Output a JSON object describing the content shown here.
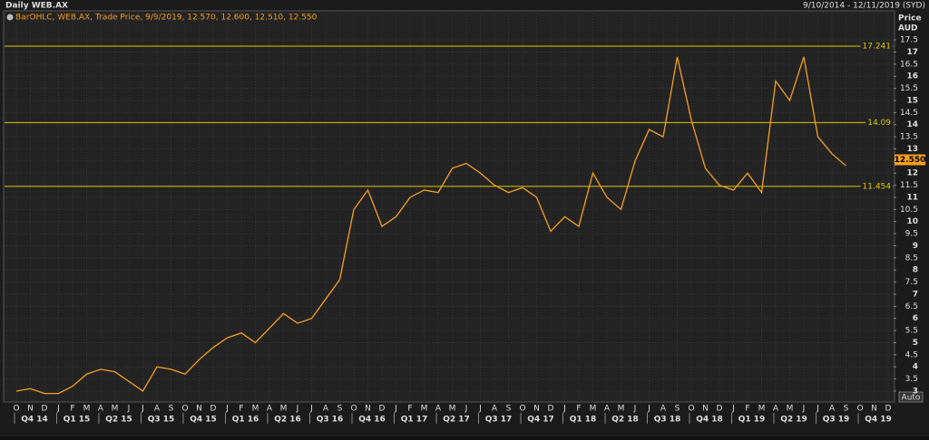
{
  "header": {
    "title": "Daily WEB.AX",
    "range": "9/10/2014 - 12/11/2019 (SYD)",
    "auto_button": "Auto"
  },
  "chart_data": {
    "type": "line",
    "legend_text": "BarOHLC, WEB.AX, Trade Price, 9/9/2019, 12.570, 12.600, 12.510, 12.550",
    "y_axis_title": [
      "Price",
      "AUD"
    ],
    "categories": [
      "O",
      "N",
      "D",
      "J",
      "F",
      "M",
      "A",
      "M",
      "J",
      "J",
      "A",
      "S",
      "O",
      "N",
      "D",
      "J",
      "F",
      "M",
      "A",
      "M",
      "J",
      "J",
      "A",
      "S",
      "O",
      "N",
      "D",
      "J",
      "F",
      "M",
      "A",
      "M",
      "J",
      "J",
      "A",
      "S",
      "O",
      "N",
      "D",
      "J",
      "F",
      "M",
      "A",
      "M",
      "J",
      "J",
      "A",
      "S",
      "O",
      "N",
      "D",
      "J",
      "F",
      "M",
      "A",
      "M",
      "J",
      "J",
      "A",
      "S",
      "O",
      "N",
      "D"
    ],
    "quarters": [
      "Q4 14",
      null,
      null,
      "Q1 15",
      null,
      null,
      "Q2 15",
      null,
      null,
      "Q3 15",
      null,
      null,
      "Q4 15",
      null,
      null,
      "Q1 16",
      null,
      null,
      "Q2 16",
      null,
      null,
      "Q3 16",
      null,
      null,
      "Q4 16",
      null,
      null,
      "Q1 17",
      null,
      null,
      "Q2 17",
      null,
      null,
      "Q3 17",
      null,
      null,
      "Q4 17",
      null,
      null,
      "Q1 18",
      null,
      null,
      "Q2 18",
      null,
      null,
      "Q3 18",
      null,
      null,
      "Q4 18",
      null,
      null,
      "Q1 19",
      null,
      null,
      "Q2 19",
      null,
      null,
      "Q3 19",
      null,
      null,
      "Q4 19",
      null,
      null
    ],
    "series": [
      {
        "name": "WEB.AX",
        "color": "#f5a020",
        "values": [
          3.0,
          3.1,
          2.9,
          2.9,
          3.2,
          3.7,
          3.9,
          3.8,
          3.4,
          3.0,
          4.0,
          3.9,
          3.7,
          4.3,
          4.8,
          5.2,
          5.4,
          5.0,
          5.6,
          6.2,
          5.8,
          6.0,
          6.8,
          7.6,
          10.5,
          11.3,
          9.8,
          10.2,
          11.0,
          11.3,
          11.2,
          12.2,
          12.4,
          12.0,
          11.5,
          11.2,
          11.4,
          11.0,
          9.6,
          10.2,
          9.8,
          12.0,
          11.0,
          10.5,
          12.5,
          13.8,
          13.5,
          16.8,
          14.2,
          12.2,
          11.5,
          11.3,
          12.0,
          11.2,
          15.8,
          15.0,
          16.8,
          13.5,
          12.8,
          12.3,
          null,
          null,
          null
        ]
      }
    ],
    "hlines": [
      {
        "value": 17.241,
        "label": "17.241"
      },
      {
        "value": 14.09,
        "label": "14.09"
      },
      {
        "value": 11.454,
        "label": "11.454"
      }
    ],
    "hline_color": "#d8c800",
    "last_price": {
      "value": 12.55,
      "label": "12.550"
    },
    "ylim": [
      2.55,
      18.7
    ],
    "yticks": [
      3,
      3.5,
      4,
      4.5,
      5,
      5.5,
      6,
      6.5,
      7,
      7.5,
      8,
      8.5,
      9,
      9.5,
      10,
      10.5,
      11,
      11.5,
      12,
      12.5,
      13,
      13.5,
      14,
      14.5,
      15,
      15.5,
      16,
      16.5,
      17,
      17.5
    ],
    "grid": true
  }
}
